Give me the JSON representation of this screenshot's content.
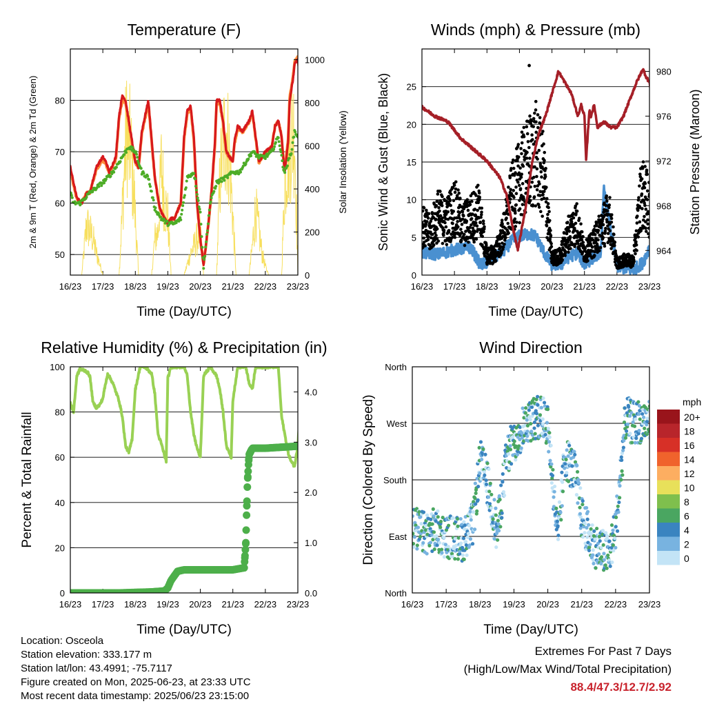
{
  "chart_data": [
    {
      "type": "line",
      "title": "Temperature (F)",
      "xlabel": "Time (Day/UTC)",
      "ylabel": "2m & 9m T (Red, Orange) & 2m Td (Green)",
      "y2label": "Solar Insolation (Yellow)",
      "x_ticks": [
        "16/23",
        "17/23",
        "18/23",
        "19/23",
        "20/23",
        "21/23",
        "22/23",
        "23/23"
      ],
      "ylim": [
        46,
        90
      ],
      "y_ticks": [
        50,
        60,
        70,
        80
      ],
      "y2lim": [
        0,
        1050
      ],
      "y2_ticks": [
        0,
        200,
        400,
        600,
        800,
        1000
      ],
      "grid": true,
      "series": [
        {
          "name": "2m T",
          "color": "#d7191c",
          "x": [
            0,
            0.1,
            0.2,
            0.35,
            0.5,
            0.6,
            0.8,
            1,
            1.1,
            1.2,
            1.4,
            1.5,
            1.6,
            1.7,
            1.8,
            1.9,
            2,
            2.1,
            2.2,
            2.4,
            2.6,
            2.75,
            2.9,
            3,
            3.1,
            3.2,
            3.4,
            3.5,
            3.6,
            3.7,
            3.8,
            3.9,
            4,
            4.1,
            4.25,
            4.35,
            4.45,
            4.5,
            4.6,
            4.7,
            4.8,
            5,
            5.05,
            5.15,
            5.3,
            5.5,
            5.6,
            5.7,
            5.8,
            6,
            6.2,
            6.3,
            6.4,
            6.5,
            6.55,
            6.6,
            6.7,
            6.75,
            6.85,
            6.9,
            7,
            7.05
          ],
          "y": [
            67,
            64,
            61,
            60,
            62,
            62,
            67,
            69,
            68,
            66,
            69,
            77,
            81,
            80,
            76,
            72,
            68,
            67,
            74,
            80,
            65,
            59,
            57,
            56,
            57,
            57,
            60,
            73,
            78,
            79,
            73,
            60,
            53,
            48,
            56,
            63,
            72,
            80,
            80,
            76,
            70,
            68,
            72,
            75,
            74,
            76,
            78,
            73,
            68,
            70,
            71,
            75,
            76,
            73,
            69,
            66,
            72,
            80,
            84,
            87,
            88,
            85
          ]
        },
        {
          "name": "9m T",
          "color": "#fd8d3c",
          "x": [
            0,
            0.1,
            0.2,
            0.35,
            0.5,
            0.6,
            0.8,
            1,
            1.1,
            1.2,
            1.4,
            1.5,
            1.6,
            1.7,
            1.8,
            1.9,
            2,
            2.1,
            2.2,
            2.4,
            2.6,
            2.75,
            2.9,
            3,
            3.1,
            3.2,
            3.4,
            3.5,
            3.6,
            3.7,
            3.8,
            3.9,
            4,
            4.1,
            4.25,
            4.35,
            4.45,
            4.5,
            4.6,
            4.7,
            4.8,
            5,
            5.05,
            5.15,
            5.3,
            5.5,
            5.6,
            5.7,
            5.8,
            6,
            6.2,
            6.3,
            6.4,
            6.5,
            6.55,
            6.6,
            6.7,
            6.75,
            6.85,
            6.9,
            7,
            7.05
          ],
          "y": [
            66.5,
            63.5,
            60.8,
            60,
            62,
            62,
            66.5,
            68.5,
            67.5,
            65.8,
            68.5,
            76.5,
            80,
            79.5,
            75.5,
            71.5,
            67.8,
            66.8,
            73.5,
            79.5,
            64.8,
            59,
            57,
            56,
            57,
            57,
            60,
            72.5,
            77.5,
            78.5,
            72.5,
            60,
            53,
            48,
            56,
            62.5,
            71.5,
            79.5,
            79.5,
            75.5,
            69.8,
            68,
            71.5,
            74.5,
            73.8,
            75.8,
            77.5,
            72.8,
            67.8,
            69.8,
            71,
            75,
            76,
            73,
            69,
            66.5,
            72.5,
            80.5,
            84.5,
            87.5,
            88.4,
            86
          ]
        },
        {
          "name": "2m Td",
          "color": "#4dac26",
          "x": [
            0,
            0.1,
            0.3,
            0.6,
            1,
            1.3,
            1.6,
            1.8,
            2,
            2.2,
            2.4,
            2.6,
            2.8,
            3,
            3.2,
            3.4,
            3.6,
            3.8,
            4,
            4.1,
            4.3,
            4.5,
            4.8,
            5,
            5.2,
            5.4,
            5.6,
            5.8,
            6,
            6.2,
            6.4,
            6.55,
            6.6,
            6.8,
            6.9,
            7,
            7.05
          ],
          "y": [
            62,
            60,
            60,
            62,
            64,
            66,
            69,
            71,
            70,
            66,
            65,
            59,
            57,
            56,
            56,
            57,
            65,
            66,
            58,
            47.5,
            60,
            64,
            65,
            66,
            66,
            68,
            70,
            69,
            69,
            70,
            73,
            67,
            66,
            70,
            74,
            73,
            73
          ]
        },
        {
          "name": "Solar Insolation",
          "color": "#f7df5e",
          "axis": "y2",
          "x": [
            0.05,
            0.35,
            0.5,
            0.7,
            0.8,
            0.9,
            1,
            1.5,
            1.6,
            1.7,
            1.75,
            1.8,
            1.85,
            1.9,
            1.95,
            2,
            2.1,
            2.5,
            2.6,
            2.7,
            2.8,
            2.9,
            3,
            3.1,
            3.5,
            3.7,
            3.9,
            4,
            4.1,
            4.5,
            4.6,
            4.7,
            4.8,
            4.9,
            5,
            5.1,
            5.5,
            5.6,
            5.7,
            5.8,
            5.9,
            6,
            6.1,
            6.5,
            6.6,
            6.7,
            6.8,
            6.9,
            7
          ],
          "y": [
            0,
            0,
            350,
            250,
            150,
            80,
            0,
            0,
            450,
            900,
            1000,
            800,
            950,
            700,
            600,
            400,
            0,
            0,
            250,
            300,
            750,
            500,
            400,
            0,
            0,
            150,
            250,
            300,
            0,
            0,
            650,
            900,
            1000,
            800,
            400,
            0,
            0,
            200,
            450,
            300,
            150,
            60,
            0,
            0,
            650,
            850,
            950,
            1000,
            0
          ]
        }
      ]
    },
    {
      "type": "scatter",
      "title": "Winds (mph) & Pressure (mb)",
      "xlabel": "Time (Day/UTC)",
      "ylabel": "Sonic Wind & Gust (Blue, Black)",
      "y2label": "Station Pressure (Maroon)",
      "x_ticks": [
        "16/23",
        "17/23",
        "18/23",
        "19/23",
        "20/23",
        "21/23",
        "22/23",
        "23/23"
      ],
      "ylim": [
        0,
        30
      ],
      "y_ticks": [
        0,
        5,
        10,
        15,
        20,
        25
      ],
      "y2lim": [
        961.8,
        982
      ],
      "y2_ticks": [
        964,
        968,
        972,
        976,
        980
      ],
      "grid": true,
      "series": [
        {
          "name": "Sonic Wind",
          "color": "#4a90d0",
          "x": [
            0,
            0.5,
            1,
            1.5,
            1.8,
            2,
            2.5,
            2.8,
            3,
            3.3,
            3.5,
            3.8,
            4,
            4.3,
            4.5,
            4.8,
            5,
            5.5,
            5.6,
            6,
            6.5,
            6.8,
            7
          ],
          "y": [
            2.8,
            2.6,
            3.2,
            3.5,
            1.2,
            1.5,
            3,
            4.5,
            5,
            5.3,
            5,
            2.5,
            1.2,
            1.3,
            2.2,
            2.8,
            1.2,
            3,
            11,
            1,
            0.5,
            1.5,
            3.5
          ]
        },
        {
          "name": "Gust",
          "color": "#000000",
          "x": [
            0,
            0.25,
            0.5,
            0.75,
            1,
            1.25,
            1.5,
            1.75,
            2,
            2.25,
            2.5,
            2.75,
            3,
            3.25,
            3.5,
            3.75,
            4,
            4.25,
            4.5,
            4.75,
            5,
            5.25,
            5.5,
            5.75,
            6,
            6.25,
            6.5,
            6.75,
            7
          ],
          "y": [
            6.5,
            5.5,
            8,
            7,
            9,
            6.5,
            7.5,
            8.5,
            2.5,
            2.8,
            5.5,
            10,
            12.5,
            14.5,
            16,
            13,
            2.2,
            2.5,
            5.5,
            7,
            3,
            4,
            6,
            8,
            1.5,
            2,
            1.8,
            11,
            9
          ],
          "max": 27.8
        },
        {
          "name": "Station Pressure",
          "color": "#a51f27",
          "axis": "y2",
          "x": [
            0,
            0.4,
            0.8,
            1.2,
            1.6,
            2,
            2.4,
            2.6,
            2.8,
            2.95,
            3.2,
            3.4,
            3.6,
            3.8,
            4,
            4.2,
            4.4,
            4.6,
            4.8,
            4.9,
            5,
            5.05,
            5.15,
            5.2,
            5.3,
            5.4,
            5.6,
            5.8,
            6,
            6.2,
            6.4,
            6.6,
            6.8,
            6.9,
            7,
            7.05
          ],
          "y": [
            976.8,
            976,
            975.5,
            974,
            973,
            972,
            970.5,
            969,
            966,
            964,
            968,
            972,
            974.5,
            976,
            978,
            980,
            979,
            978,
            976,
            977,
            976,
            972,
            976.5,
            976,
            977,
            975,
            975.5,
            975,
            975,
            976,
            977.5,
            979,
            980.2,
            979.5,
            979,
            978.2
          ]
        }
      ]
    },
    {
      "type": "line",
      "title": "Relative Humidity (%) & Precipitation (in)",
      "xlabel": "Time (Day/UTC)",
      "ylabel": "Percent & Total Rainfall",
      "x_ticks": [
        "16/23",
        "17/23",
        "18/23",
        "19/23",
        "20/23",
        "21/23",
        "22/23",
        "23/23"
      ],
      "ylim": [
        0,
        100
      ],
      "y_ticks": [
        0,
        20,
        40,
        60,
        80,
        100
      ],
      "y2lim": [
        0,
        4.5
      ],
      "y2_ticks": [
        0.0,
        1.0,
        2.0,
        3.0,
        4.0
      ],
      "grid": true,
      "series": [
        {
          "name": "Relative Humidity",
          "color": "#99d154",
          "x": [
            0,
            0.1,
            0.2,
            0.3,
            0.5,
            0.6,
            0.7,
            0.8,
            0.9,
            1,
            1.05,
            1.15,
            1.3,
            1.5,
            1.6,
            1.7,
            1.8,
            1.9,
            2,
            2.15,
            2.3,
            2.5,
            2.6,
            2.7,
            2.8,
            2.95,
            3,
            3.1,
            3.5,
            3.6,
            3.7,
            3.8,
            3.9,
            4,
            4.1,
            4.3,
            4.5,
            4.6,
            4.7,
            4.8,
            4.95,
            5,
            5.15,
            5.4,
            5.5,
            5.6,
            5.7,
            5.8,
            6,
            6.2,
            6.3,
            6.4,
            6.5,
            6.6,
            6.7,
            6.8,
            6.9,
            7,
            7.05
          ],
          "y": [
            84,
            80,
            96,
            99,
            98,
            96,
            84,
            82,
            83,
            86,
            90,
            97,
            93,
            85,
            78,
            65,
            62,
            68,
            90,
            100,
            100,
            97,
            88,
            70,
            66,
            58,
            95,
            100,
            100,
            96,
            80,
            70,
            64,
            60,
            96,
            100,
            96,
            90,
            80,
            65,
            60,
            85,
            100,
            100,
            93,
            90,
            100,
            100,
            100,
            100,
            100,
            100,
            78,
            70,
            62,
            58,
            56,
            65,
            77
          ]
        },
        {
          "name": "Total Rainfall",
          "color": "#4daf4a",
          "axis": "y2",
          "x": [
            0,
            0.5,
            1,
            1.5,
            2,
            2.5,
            2.9,
            3,
            3.1,
            3.3,
            3.5,
            4,
            4.5,
            5,
            5.35,
            5.4,
            5.42,
            5.45,
            5.5,
            5.6,
            6,
            6.5,
            7,
            7.05
          ],
          "y": [
            0,
            0,
            0,
            0,
            0.01,
            0.02,
            0.04,
            0.1,
            0.25,
            0.43,
            0.46,
            0.46,
            0.46,
            0.46,
            0.5,
            1.0,
            1.5,
            2.2,
            2.75,
            2.88,
            2.88,
            2.9,
            2.92,
            2.92
          ]
        }
      ]
    },
    {
      "type": "scatter",
      "title": "Wind Direction",
      "xlabel": "Time (Day/UTC)",
      "ylabel": "Direction (Colored By Speed)",
      "x_ticks": [
        "16/23",
        "17/23",
        "18/23",
        "19/23",
        "20/23",
        "21/23",
        "22/23",
        "23/23"
      ],
      "y_ticks": [
        "North",
        "East",
        "South",
        "West",
        "North"
      ],
      "ylim": [
        0,
        360
      ],
      "grid": true,
      "legend": {
        "title": "mph",
        "labels": [
          "20+",
          "18",
          "16",
          "14",
          "12",
          "10",
          "8",
          "6",
          "4",
          "2",
          "0"
        ],
        "colors": [
          "#99141b",
          "#b8252b",
          "#d73027",
          "#f0632c",
          "#fdae61",
          "#e8e05a",
          "#7fbf4d",
          "#4aa661",
          "#3a84c0",
          "#78b3e0",
          "#c3e4f6"
        ],
        "placement": "right"
      },
      "series": [
        {
          "name": "Direction",
          "x": [
            0,
            0.3,
            0.6,
            0.9,
            1.2,
            1.5,
            1.8,
            2,
            2.2,
            2.5,
            2.8,
            3,
            3.3,
            3.5,
            3.8,
            4,
            4.3,
            4.5,
            4.8,
            5,
            5.3,
            5.5,
            5.8,
            6,
            6.3,
            6.5,
            6.8,
            7
          ],
          "y": [
            105,
            95,
            100,
            92,
            88,
            85,
            110,
            210,
            180,
            95,
            220,
            240,
            270,
            275,
            280,
            270,
            80,
            220,
            190,
            120,
            80,
            70,
            60,
            100,
            280,
            270,
            275,
            270
          ]
        }
      ]
    }
  ],
  "info": {
    "location": "Location: Osceola",
    "elevation": "Station elevation: 333.177 m",
    "latlon": "Station lat/lon: 43.4991; -75.7117",
    "created": "Figure created on Mon, 2025-06-23, at 23:33 UTC",
    "recent": "Most recent data timestamp: 2025/06/23 23:15:00"
  },
  "extremes": {
    "title": "Extremes For Past 7 Days",
    "subtitle": "(High/Low/Max Wind/Total Precipitation)",
    "values": "88.4/47.3/12.7/2.92"
  }
}
